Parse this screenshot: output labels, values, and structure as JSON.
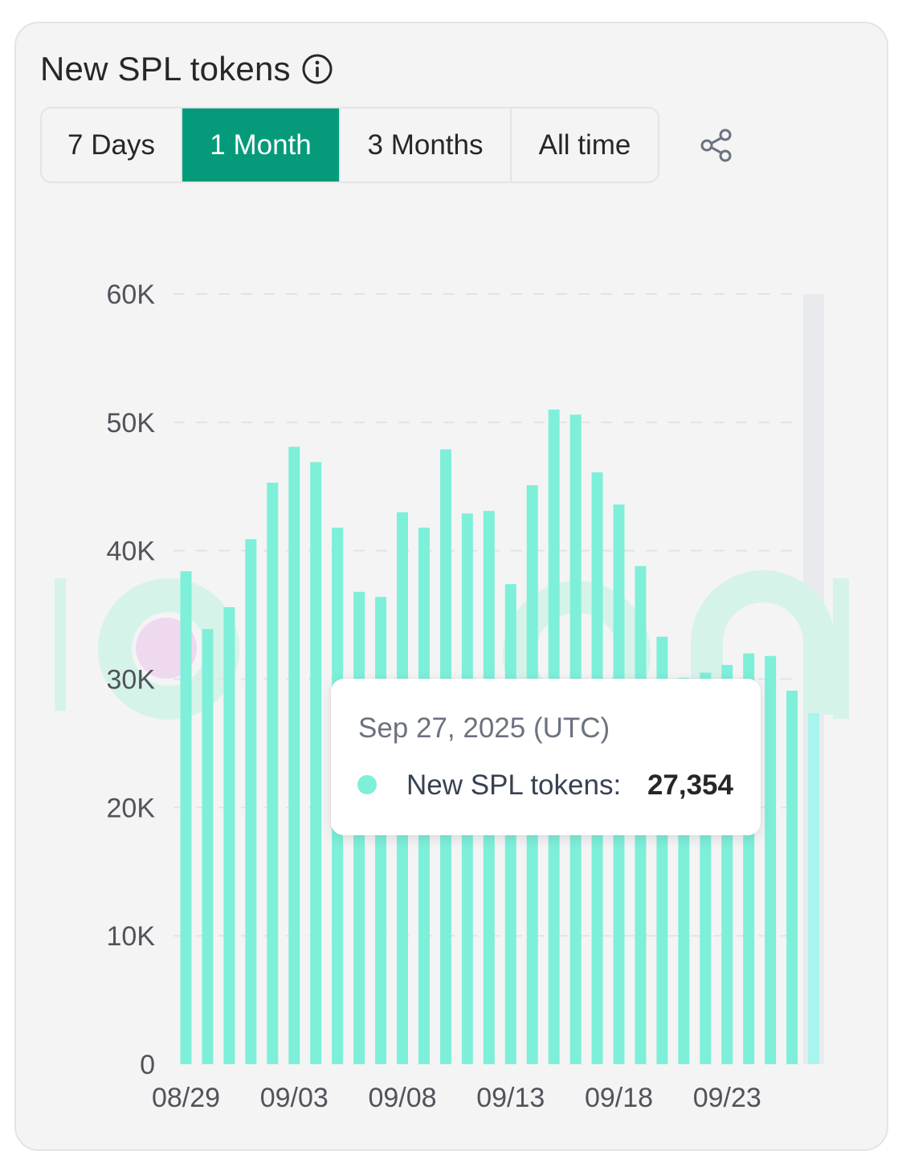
{
  "header": {
    "title": "New SPL tokens",
    "info_icon": "info-circle-icon"
  },
  "tabs": [
    {
      "label": "7 Days",
      "active": false
    },
    {
      "label": "1 Month",
      "active": true
    },
    {
      "label": "3 Months",
      "active": false
    },
    {
      "label": "All time",
      "active": false
    }
  ],
  "share_icon": "share-icon",
  "colors": {
    "accent": "#059b7a",
    "bar": "#7eefd9",
    "bar_highlight": "#a7f5ec",
    "hover_band": "#e9eaee",
    "watermark": "#d6f3ea"
  },
  "tooltip": {
    "date": "Sep 27, 2025 (UTC)",
    "series_label": "New SPL tokens:",
    "value": "27,354"
  },
  "chart_data": {
    "type": "bar",
    "categories": [
      "08/29",
      "08/30",
      "08/31",
      "09/01",
      "09/02",
      "09/03",
      "09/04",
      "09/05",
      "09/06",
      "09/07",
      "09/08",
      "09/09",
      "09/10",
      "09/11",
      "09/12",
      "09/13",
      "09/14",
      "09/15",
      "09/16",
      "09/17",
      "09/18",
      "09/19",
      "09/20",
      "09/21",
      "09/22",
      "09/23",
      "09/24",
      "09/25",
      "09/26",
      "09/27"
    ],
    "x_tick_labels": [
      "08/29",
      "09/03",
      "09/08",
      "09/13",
      "09/18",
      "09/23"
    ],
    "series": [
      {
        "values": [
          38400,
          33900,
          35600,
          40900,
          45300,
          48100,
          46900,
          41800,
          36800,
          36400,
          43000,
          41800,
          47900,
          42900,
          43100,
          37400,
          45100,
          51000,
          50600,
          46100,
          43600,
          38800,
          33300,
          30100,
          30500,
          31100,
          32000,
          31800,
          29100,
          27354
        ]
      }
    ],
    "highlight_index": 29,
    "ylim": [
      0,
      60000
    ],
    "y_ticks": [
      0,
      10000,
      20000,
      30000,
      40000,
      50000,
      60000
    ],
    "y_tick_labels": [
      "0",
      "10K",
      "20K",
      "30K",
      "40K",
      "50K",
      "60K"
    ],
    "grid": true,
    "legend": "none"
  }
}
